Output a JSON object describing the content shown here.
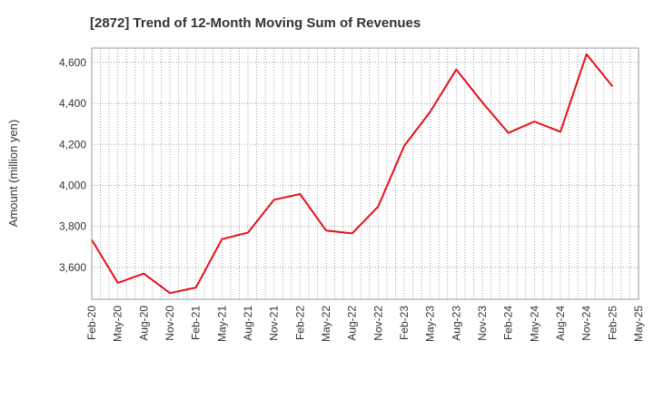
{
  "chart_data": {
    "type": "line",
    "title": "[2872]  Trend of 12-Month Moving Sum of Revenues",
    "xlabel": "",
    "ylabel": "Amount (million yen)",
    "x_tick_labels": [
      "Feb-20",
      "May-20",
      "Aug-20",
      "Nov-20",
      "Feb-21",
      "May-21",
      "Aug-21",
      "Nov-21",
      "Feb-22",
      "May-22",
      "Aug-22",
      "Nov-22",
      "Feb-23",
      "May-23",
      "Aug-23",
      "Nov-23",
      "Feb-24",
      "May-24",
      "Aug-24",
      "Nov-24",
      "Feb-25",
      "May-25"
    ],
    "y_ticks": [
      3600,
      3800,
      4000,
      4200,
      4400,
      4600
    ],
    "y_tick_labels": [
      "3,600",
      "3,800",
      "4,000",
      "4,200",
      "4,400",
      "4,600"
    ],
    "ylim": [
      3445,
      4670
    ],
    "grid": true,
    "series": [
      {
        "color": "#e8101a",
        "x": [
          "Feb-20",
          "May-20",
          "Aug-20",
          "Nov-20",
          "Feb-21",
          "May-21",
          "Aug-21",
          "Nov-21",
          "Feb-22",
          "May-22",
          "Aug-22",
          "Nov-22",
          "Feb-23",
          "May-23",
          "Aug-23",
          "Nov-23",
          "Feb-24",
          "May-24",
          "Aug-24",
          "Nov-24",
          "Feb-25"
        ],
        "values": [
          3735,
          3525,
          3570,
          3475,
          3502,
          3738,
          3770,
          3930,
          3958,
          3780,
          3766,
          3897,
          4193,
          4360,
          4565,
          4405,
          4256,
          4312,
          4262,
          4640,
          4483
        ]
      }
    ]
  }
}
